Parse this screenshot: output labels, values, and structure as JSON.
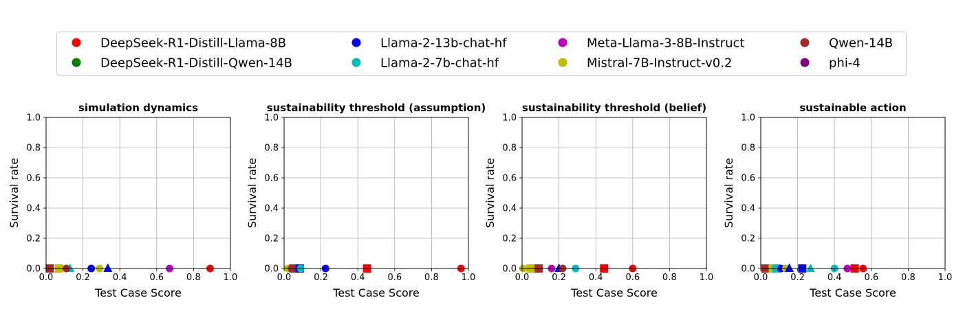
{
  "legend": {
    "entries": [
      {
        "label": "DeepSeek-R1-Distill-Llama-8B",
        "color": "#ff0000"
      },
      {
        "label": "DeepSeek-R1-Distill-Qwen-14B",
        "color": "#008000"
      },
      {
        "label": "Llama-2-13b-chat-hf",
        "color": "#0000ff"
      },
      {
        "label": "Llama-2-7b-chat-hf",
        "color": "#00bfbf"
      },
      {
        "label": "Meta-Llama-3-8B-Instruct",
        "color": "#bf00bf"
      },
      {
        "label": "Mistral-7B-Instruct-v0.2",
        "color": "#bfbf00"
      },
      {
        "label": "Qwen-14B",
        "color": "#a52a2a"
      },
      {
        "label": "phi-4",
        "color": "#800080"
      }
    ]
  },
  "chart_data": [
    {
      "type": "scatter",
      "title": "simulation dynamics",
      "xlabel": "Test Case Score",
      "ylabel": "Survival rate",
      "xlim": [
        0,
        1
      ],
      "ylim": [
        0,
        1
      ],
      "xticks": [
        "0.0",
        "0.2",
        "0.4",
        "0.6",
        "0.8",
        "1.0"
      ],
      "yticks": [
        "0.0",
        "0.2",
        "0.4",
        "0.6",
        "0.8",
        "1.0"
      ],
      "grid": true,
      "points": [
        {
          "model": "Qwen-14B",
          "marker": "square",
          "x": 0.02,
          "y": 0.0
        },
        {
          "model": "Qwen-14B",
          "marker": "circle",
          "x": 0.02,
          "y": 0.0
        },
        {
          "model": "Mistral-7B-Instruct-v0.2",
          "marker": "square",
          "x": 0.07,
          "y": 0.0
        },
        {
          "model": "Llama-2-7b-chat-hf",
          "marker": "triangle",
          "x": 0.13,
          "y": 0.0
        },
        {
          "model": "Qwen-14B",
          "marker": "circle",
          "x": 0.11,
          "y": 0.0
        },
        {
          "model": "Llama-2-13b-chat-hf",
          "marker": "circle",
          "x": 0.245,
          "y": 0.0
        },
        {
          "model": "Mistral-7B-Instruct-v0.2",
          "marker": "circle",
          "x": 0.29,
          "y": 0.0
        },
        {
          "model": "Llama-2-13b-chat-hf",
          "marker": "triangle",
          "x": 0.335,
          "y": 0.0
        },
        {
          "model": "Meta-Llama-3-8B-Instruct",
          "marker": "circle",
          "x": 0.67,
          "y": 0.0
        },
        {
          "model": "DeepSeek-R1-Distill-Llama-8B",
          "marker": "circle",
          "x": 0.89,
          "y": 0.0
        }
      ]
    },
    {
      "type": "scatter",
      "title": "sustainability threshold (assumption)",
      "xlabel": "Test Case Score",
      "ylabel": "Survival rate",
      "xlim": [
        0,
        1
      ],
      "ylim": [
        0,
        1
      ],
      "xticks": [
        "0.0",
        "0.2",
        "0.4",
        "0.6",
        "0.8",
        "1.0"
      ],
      "yticks": [
        "0.0",
        "0.2",
        "0.4",
        "0.6",
        "0.8",
        "1.0"
      ],
      "grid": true,
      "points": [
        {
          "model": "Mistral-7B-Instruct-v0.2",
          "marker": "circle",
          "x": 0.02,
          "y": 0.0
        },
        {
          "model": "Qwen-14B",
          "marker": "circle",
          "x": 0.04,
          "y": 0.0
        },
        {
          "model": "Qwen-14B",
          "marker": "square",
          "x": 0.05,
          "y": 0.0
        },
        {
          "model": "Llama-2-13b-chat-hf",
          "marker": "square",
          "x": 0.085,
          "y": 0.0
        },
        {
          "model": "Llama-2-7b-chat-hf",
          "marker": "circle",
          "x": 0.09,
          "y": 0.0
        },
        {
          "model": "Llama-2-13b-chat-hf",
          "marker": "circle",
          "x": 0.225,
          "y": 0.0
        },
        {
          "model": "DeepSeek-R1-Distill-Llama-8B",
          "marker": "square",
          "x": 0.45,
          "y": 0.0
        },
        {
          "model": "DeepSeek-R1-Distill-Llama-8B",
          "marker": "circle",
          "x": 0.96,
          "y": 0.0
        }
      ]
    },
    {
      "type": "scatter",
      "title": "sustainability threshold (belief)",
      "xlabel": "Test Case Score",
      "ylabel": "Survival rate",
      "xlim": [
        0,
        1
      ],
      "ylim": [
        0,
        1
      ],
      "xticks": [
        "0.0",
        "0.2",
        "0.4",
        "0.6",
        "0.8",
        "1.0"
      ],
      "yticks": [
        "0.0",
        "0.2",
        "0.4",
        "0.6",
        "0.8",
        "1.0"
      ],
      "grid": true,
      "points": [
        {
          "model": "Mistral-7B-Instruct-v0.2",
          "marker": "circle",
          "x": 0.005,
          "y": 0.0
        },
        {
          "model": "Mistral-7B-Instruct-v0.2",
          "marker": "square",
          "x": 0.045,
          "y": 0.0
        },
        {
          "model": "Qwen-14B",
          "marker": "square",
          "x": 0.09,
          "y": 0.0
        },
        {
          "model": "Meta-Llama-3-8B-Instruct",
          "marker": "circle",
          "x": 0.16,
          "y": 0.0
        },
        {
          "model": "Llama-2-13b-chat-hf",
          "marker": "triangle",
          "x": 0.2,
          "y": 0.0
        },
        {
          "model": "Qwen-14B",
          "marker": "circle",
          "x": 0.22,
          "y": 0.0
        },
        {
          "model": "Llama-2-7b-chat-hf",
          "marker": "circle",
          "x": 0.29,
          "y": 0.0
        },
        {
          "model": "DeepSeek-R1-Distill-Llama-8B",
          "marker": "square",
          "x": 0.445,
          "y": 0.0
        },
        {
          "model": "DeepSeek-R1-Distill-Llama-8B",
          "marker": "circle",
          "x": 0.6,
          "y": 0.0
        }
      ]
    },
    {
      "type": "scatter",
      "title": "sustainable action",
      "xlabel": "Test Case Score",
      "ylabel": "Survival rate",
      "xlim": [
        0,
        1
      ],
      "ylim": [
        0,
        1
      ],
      "xticks": [
        "0.0",
        "0.2",
        "0.4",
        "0.6",
        "0.8",
        "1.0"
      ],
      "yticks": [
        "0.0",
        "0.2",
        "0.4",
        "0.6",
        "0.8",
        "1.0"
      ],
      "grid": true,
      "points": [
        {
          "model": "Qwen-14B",
          "marker": "square",
          "x": 0.025,
          "y": 0.0
        },
        {
          "model": "Mistral-7B-Instruct-v0.2",
          "marker": "square",
          "x": 0.065,
          "y": 0.0
        },
        {
          "model": "Llama-2-7b-chat-hf",
          "marker": "square",
          "x": 0.085,
          "y": 0.0
        },
        {
          "model": "Llama-2-13b-chat-hf",
          "marker": "circle",
          "x": 0.11,
          "y": 0.0
        },
        {
          "model": "Mistral-7B-Instruct-v0.2",
          "marker": "circle",
          "x": 0.135,
          "y": 0.0
        },
        {
          "model": "Llama-2-13b-chat-hf",
          "marker": "triangle",
          "x": 0.155,
          "y": 0.0
        },
        {
          "model": "Llama-2-13b-chat-hf",
          "marker": "square",
          "x": 0.225,
          "y": 0.0
        },
        {
          "model": "Llama-2-7b-chat-hf",
          "marker": "triangle",
          "x": 0.27,
          "y": 0.0
        },
        {
          "model": "Llama-2-7b-chat-hf",
          "marker": "circle",
          "x": 0.4,
          "y": 0.0
        },
        {
          "model": "Meta-Llama-3-8B-Instruct",
          "marker": "circle",
          "x": 0.47,
          "y": 0.0
        },
        {
          "model": "DeepSeek-R1-Distill-Llama-8B",
          "marker": "square",
          "x": 0.51,
          "y": 0.0
        },
        {
          "model": "DeepSeek-R1-Distill-Llama-8B",
          "marker": "circle",
          "x": 0.555,
          "y": 0.0
        }
      ]
    }
  ]
}
